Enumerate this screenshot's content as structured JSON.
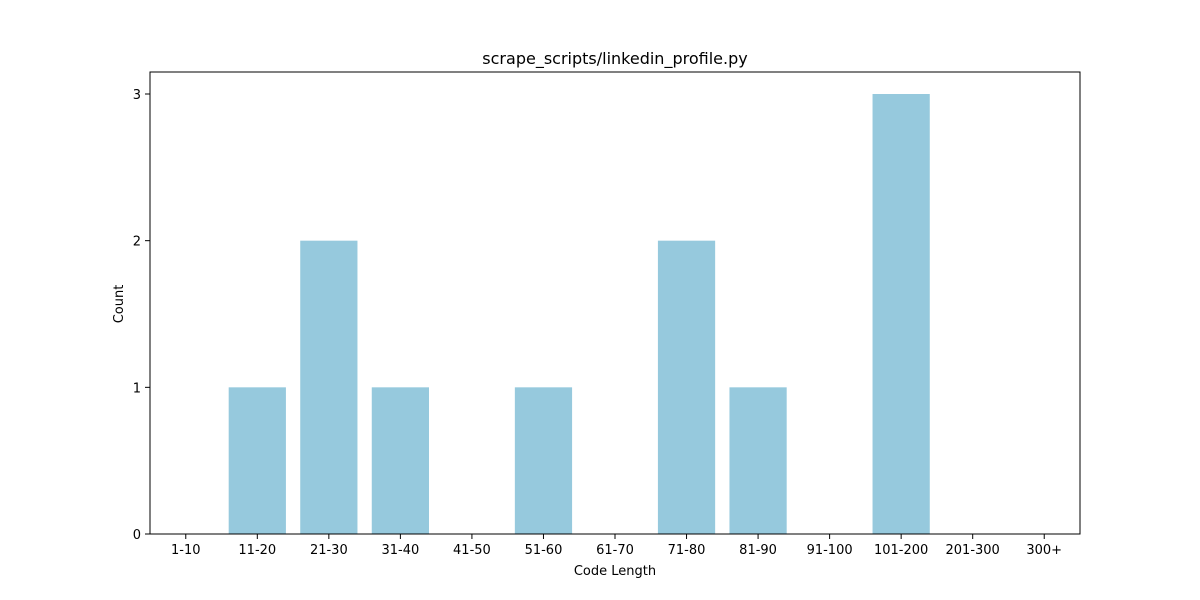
{
  "chart_data": {
    "type": "bar",
    "title": "scrape_scripts/linkedin_profile.py",
    "xlabel": "Code Length",
    "ylabel": "Count",
    "categories": [
      "1-10",
      "11-20",
      "21-30",
      "31-40",
      "41-50",
      "51-60",
      "61-70",
      "71-80",
      "81-90",
      "91-100",
      "101-200",
      "201-300",
      "300+"
    ],
    "values": [
      0,
      1,
      2,
      1,
      0,
      1,
      0,
      2,
      1,
      0,
      3,
      0,
      0
    ],
    "ylim": [
      0,
      3.15
    ],
    "yticks": [
      "0",
      "1",
      "2",
      "3"
    ],
    "grid": false,
    "legend": "none",
    "colors": {
      "bar": "#96c9dd",
      "axis": "#000000",
      "text": "#000000"
    }
  }
}
